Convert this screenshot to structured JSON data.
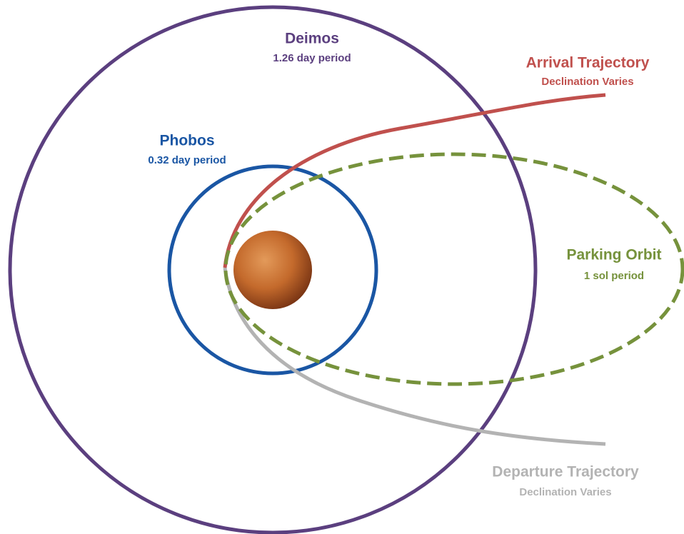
{
  "labels": {
    "deimos": {
      "name": "Deimos",
      "period": "1.26 day period"
    },
    "phobos": {
      "name": "Phobos",
      "period": "0.32 day period"
    },
    "arrival": {
      "name": "Arrival Trajectory",
      "note": "Declination Varies"
    },
    "parking": {
      "name": "Parking Orbit",
      "period": "1 sol period"
    },
    "departure": {
      "name": "Departure Trajectory",
      "note": "Declination Varies"
    }
  }
}
